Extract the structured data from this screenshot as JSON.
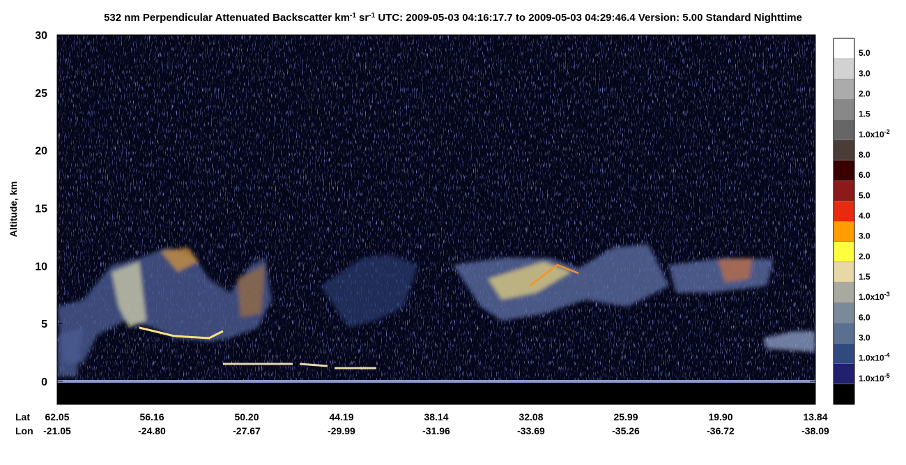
{
  "chart_data": {
    "type": "curtain",
    "title_parts": [
      "532 nm Perpendicular Attenuated Backscatter km",
      "-1",
      " sr",
      "-1",
      "  UTC: 2009-05-03 04:16:17.7 to 2009-05-03 04:29:46.4  Version: 5.00 Standard Nighttime"
    ],
    "ylabel": "Altitude, km",
    "ylim": [
      -2,
      30
    ],
    "yticks": [
      0,
      5,
      10,
      15,
      20,
      25,
      30
    ],
    "x_row_labels": [
      "Lat",
      "Lon"
    ],
    "lat_labels": [
      "62.05",
      "56.16",
      "50.20",
      "44.19",
      "38.14",
      "32.08",
      "25.99",
      "19.90",
      "13.84"
    ],
    "lon_labels": [
      "-21.05",
      "-24.80",
      "-27.67",
      "-29.99",
      "-31.96",
      "-33.69",
      "-35.26",
      "-36.72",
      "-38.09"
    ],
    "colorbar": {
      "colors": [
        "#ffffff",
        "#d2d2d2",
        "#ababab",
        "#888888",
        "#666666",
        "#4a3c38",
        "#3a0000",
        "#8c1a1a",
        "#e82a10",
        "#ff9c00",
        "#ffff40",
        "#e8d8a8",
        "#a8a9a0",
        "#7a8a98",
        "#5a7090",
        "#304a80",
        "#20206e",
        "#000000"
      ],
      "labels": [
        "5.0",
        "3.0",
        "2.0",
        "1.5",
        {
          "text": "1.0x10",
          "sup": "-2"
        },
        "8.0",
        "6.0",
        "5.0",
        "4.0",
        "3.0",
        "2.0",
        "1.5",
        {
          "text": "1.0x10",
          "sup": "-3"
        },
        "6.0",
        "3.0",
        {
          "text": "1.0x10",
          "sup": "-4"
        },
        {
          "text": "1.0x10",
          "sup": "-5"
        }
      ]
    }
  }
}
